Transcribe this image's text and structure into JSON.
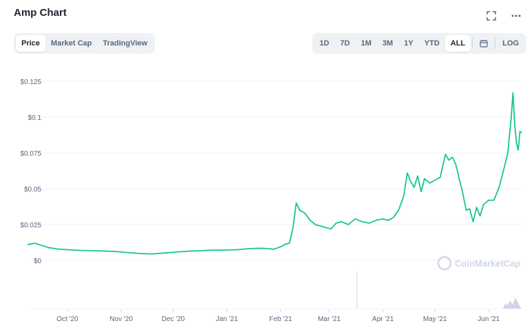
{
  "header": {
    "title": "Amp Chart",
    "expand_icon": "expand-icon",
    "more_icon": "more-horizontal-icon"
  },
  "view_tabs": [
    {
      "label": "Price",
      "active": true
    },
    {
      "label": "Market Cap",
      "active": false
    },
    {
      "label": "TradingView",
      "active": false
    }
  ],
  "range_tabs": [
    {
      "label": "1D",
      "active": false
    },
    {
      "label": "7D",
      "active": false
    },
    {
      "label": "1M",
      "active": false
    },
    {
      "label": "3M",
      "active": false
    },
    {
      "label": "1Y",
      "active": false
    },
    {
      "label": "YTD",
      "active": false
    },
    {
      "label": "ALL",
      "active": true
    }
  ],
  "calendar_icon": "calendar-icon",
  "log_label": "LOG",
  "watermark": "CoinMarketCap",
  "colors": {
    "line": "#16c784",
    "grid": "#eff2f5",
    "axis_text": "#58667e",
    "volume": "#cfd6e4"
  },
  "chart_data": {
    "type": "line",
    "title": "Amp Chart",
    "ylim": [
      0,
      0.125
    ],
    "y_ticks": [
      "$0",
      "$0.025",
      "$0.05",
      "$0.075",
      "$0.1",
      "$0.125"
    ],
    "x_ticks": [
      "Oct '20",
      "Nov '20",
      "Dec '20",
      "Jan '21",
      "Feb '21",
      "Mar '21",
      "Apr '21",
      "May '21",
      "Jun '21"
    ],
    "series": [
      {
        "x": [
          "2020-09-08",
          "2020-09-12",
          "2020-09-16",
          "2020-09-20",
          "2020-09-25",
          "2020-10-01",
          "2020-10-08",
          "2020-10-15",
          "2020-10-22",
          "2020-10-29",
          "2020-11-05",
          "2020-11-12",
          "2020-11-19",
          "2020-11-26",
          "2020-12-03",
          "2020-12-10",
          "2020-12-17",
          "2020-12-24",
          "2020-12-31",
          "2021-01-07",
          "2021-01-14",
          "2021-01-21",
          "2021-01-25",
          "2021-01-28",
          "2021-02-01",
          "2021-02-04",
          "2021-02-06",
          "2021-02-08",
          "2021-02-10",
          "2021-02-12",
          "2021-02-15",
          "2021-02-18",
          "2021-02-21",
          "2021-02-24",
          "2021-02-27",
          "2021-03-02",
          "2021-03-05",
          "2021-03-08",
          "2021-03-12",
          "2021-03-16",
          "2021-03-20",
          "2021-03-24",
          "2021-03-28",
          "2021-04-01",
          "2021-04-04",
          "2021-04-07",
          "2021-04-10",
          "2021-04-13",
          "2021-04-15",
          "2021-04-17",
          "2021-04-19",
          "2021-04-21",
          "2021-04-23",
          "2021-04-25",
          "2021-04-28",
          "2021-05-01",
          "2021-05-04",
          "2021-05-07",
          "2021-05-09",
          "2021-05-11",
          "2021-05-13",
          "2021-05-15",
          "2021-05-17",
          "2021-05-19",
          "2021-05-21",
          "2021-05-23",
          "2021-05-25",
          "2021-05-27",
          "2021-05-29",
          "2021-06-01",
          "2021-06-04",
          "2021-06-07",
          "2021-06-10",
          "2021-06-12",
          "2021-06-14",
          "2021-06-15",
          "2021-06-16",
          "2021-06-17",
          "2021-06-18",
          "2021-06-19",
          "2021-06-20"
        ],
        "y": [
          0.011,
          0.012,
          0.0105,
          0.009,
          0.008,
          0.0075,
          0.007,
          0.0068,
          0.0066,
          0.0062,
          0.0055,
          0.0048,
          0.0045,
          0.0052,
          0.0058,
          0.0065,
          0.0068,
          0.0072,
          0.0072,
          0.0075,
          0.0082,
          0.0085,
          0.0082,
          0.0078,
          0.0095,
          0.0115,
          0.012,
          0.022,
          0.04,
          0.035,
          0.033,
          0.028,
          0.025,
          0.024,
          0.023,
          0.022,
          0.026,
          0.027,
          0.025,
          0.029,
          0.027,
          0.026,
          0.028,
          0.029,
          0.028,
          0.03,
          0.035,
          0.045,
          0.061,
          0.055,
          0.051,
          0.059,
          0.048,
          0.057,
          0.054,
          0.056,
          0.058,
          0.074,
          0.07,
          0.072,
          0.067,
          0.057,
          0.047,
          0.035,
          0.036,
          0.027,
          0.037,
          0.031,
          0.039,
          0.042,
          0.042,
          0.051,
          0.065,
          0.075,
          0.1,
          0.117,
          0.095,
          0.082,
          0.077,
          0.09,
          0.089
        ]
      }
    ]
  }
}
